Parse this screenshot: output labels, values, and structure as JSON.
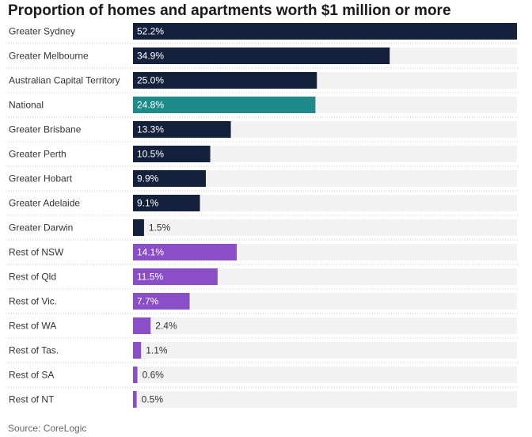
{
  "chart_data": {
    "type": "bar",
    "orientation": "horizontal",
    "title": "Proportion of homes and apartments worth $1 million or more",
    "source": "Source: CoreLogic",
    "unit": "%",
    "xlim": [
      0,
      52.2
    ],
    "categories": [
      "Greater Sydney",
      "Greater Melbourne",
      "Australian Capital Territory",
      "National",
      "Greater Brisbane",
      "Greater Perth",
      "Greater Hobart",
      "Greater Adelaide",
      "Greater Darwin",
      "Rest of NSW",
      "Rest of Qld",
      "Rest of Vic.",
      "Rest of WA",
      "Rest of Tas.",
      "Rest of SA",
      "Rest of NT"
    ],
    "values": [
      52.2,
      34.9,
      25.0,
      24.8,
      13.3,
      10.5,
      9.9,
      9.1,
      1.5,
      14.1,
      11.5,
      7.7,
      2.4,
      1.1,
      0.6,
      0.5
    ],
    "labels": [
      "52.2%",
      "34.9%",
      "25.0%",
      "24.8%",
      "13.3%",
      "10.5%",
      "9.9%",
      "9.1%",
      "1.5%",
      "14.1%",
      "11.5%",
      "7.7%",
      "2.4%",
      "1.1%",
      "0.6%",
      "0.5%"
    ],
    "colors": [
      "#14213d",
      "#14213d",
      "#14213d",
      "#1e8a8a",
      "#14213d",
      "#14213d",
      "#14213d",
      "#14213d",
      "#14213d",
      "#8a4fc8",
      "#8a4fc8",
      "#8a4fc8",
      "#8a4fc8",
      "#8a4fc8",
      "#8a4fc8",
      "#8a4fc8"
    ],
    "track_color": "#f2f2f2",
    "label_color_inside": "#ffffff",
    "label_color_outside": "#333333"
  }
}
